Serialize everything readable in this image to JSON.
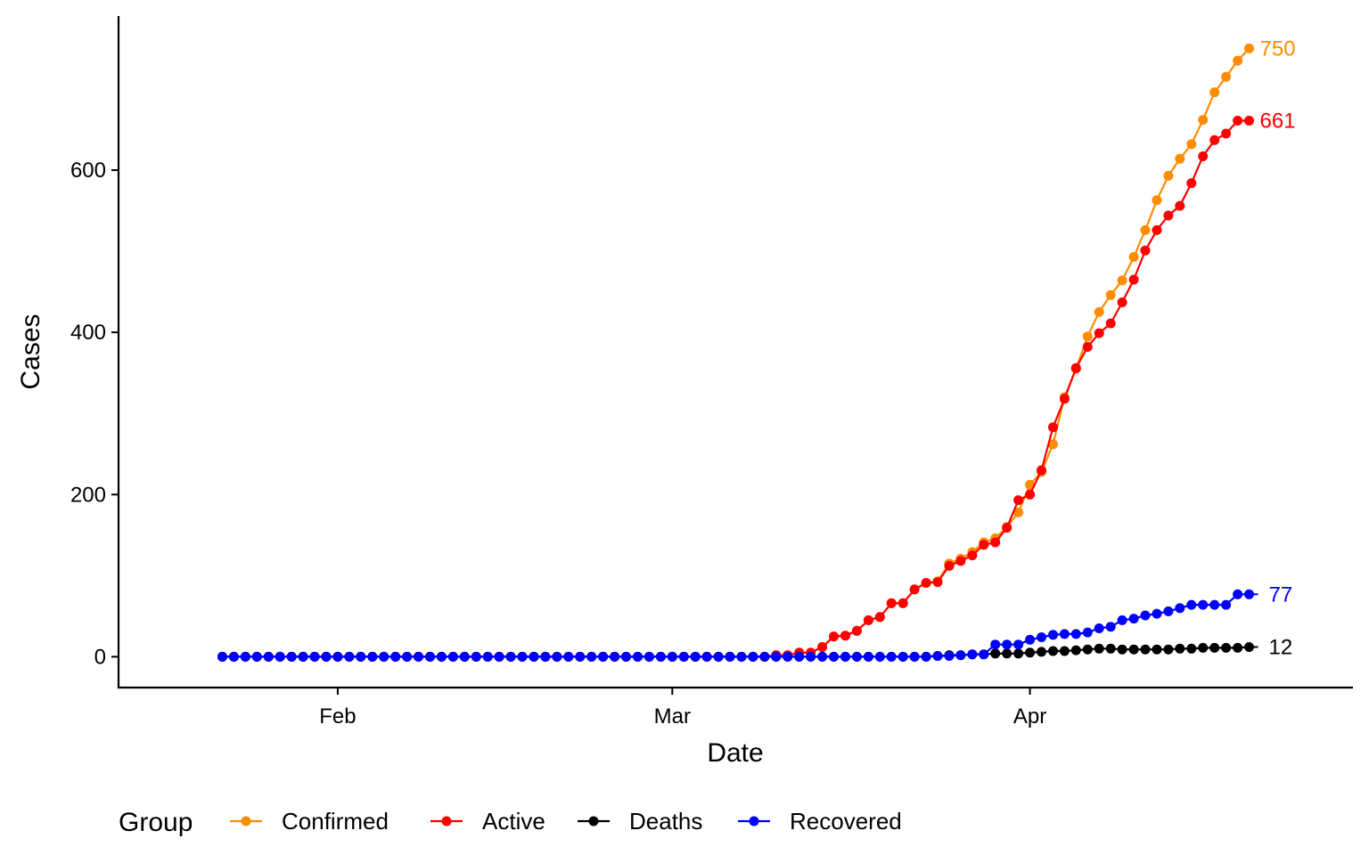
{
  "chart_data": {
    "type": "line",
    "xlabel": "Date",
    "ylabel": "Cases",
    "x_start": "2020-01-22",
    "x_end": "2020-04-17",
    "xlim": [
      "2020-01-13",
      "2020-04-29"
    ],
    "ylim": [
      -38,
      790
    ],
    "x_ticks": [
      {
        "date": "2020-02-01",
        "label": "Feb"
      },
      {
        "date": "2020-03-01",
        "label": "Mar"
      },
      {
        "date": "2020-04-01",
        "label": "Apr"
      }
    ],
    "y_ticks": [
      0,
      200,
      400,
      600
    ],
    "grid": false,
    "legend": {
      "title": "Group",
      "position": "bottom-left"
    },
    "series": [
      {
        "name": "Confirmed",
        "color": "#FF8C00",
        "end_label": "750",
        "values": [
          0,
          0,
          0,
          0,
          0,
          0,
          0,
          0,
          0,
          0,
          0,
          0,
          0,
          0,
          0,
          0,
          0,
          0,
          0,
          0,
          0,
          0,
          0,
          0,
          0,
          0,
          0,
          0,
          0,
          0,
          0,
          0,
          0,
          0,
          0,
          0,
          0,
          0,
          0,
          0,
          0,
          0,
          0,
          0,
          0,
          0,
          0,
          0,
          2,
          2,
          5,
          5,
          12,
          25,
          26,
          32,
          45,
          49,
          66,
          66,
          83,
          91,
          93,
          115,
          121,
          129,
          141,
          146,
          160,
          178,
          212,
          228,
          262,
          320,
          355,
          395,
          425,
          446,
          464,
          493,
          526,
          563,
          593,
          614,
          632,
          662,
          696,
          715,
          735,
          750
        ]
      },
      {
        "name": "Active",
        "color": "#FF0000",
        "end_label": "661",
        "values": [
          0,
          0,
          0,
          0,
          0,
          0,
          0,
          0,
          0,
          0,
          0,
          0,
          0,
          0,
          0,
          0,
          0,
          0,
          0,
          0,
          0,
          0,
          0,
          0,
          0,
          0,
          0,
          0,
          0,
          0,
          0,
          0,
          0,
          0,
          0,
          0,
          0,
          0,
          0,
          0,
          0,
          0,
          0,
          0,
          0,
          0,
          0,
          0,
          2,
          2,
          5,
          5,
          12,
          25,
          26,
          32,
          45,
          49,
          66,
          66,
          83,
          91,
          92,
          112,
          118,
          125,
          138,
          141,
          159,
          193,
          200,
          230,
          283,
          318,
          356,
          382,
          399,
          411,
          437,
          465,
          501,
          526,
          544,
          556,
          584,
          617,
          637,
          645,
          661,
          661
        ]
      },
      {
        "name": "Deaths",
        "color": "#000000",
        "end_label": "12",
        "values": [
          0,
          0,
          0,
          0,
          0,
          0,
          0,
          0,
          0,
          0,
          0,
          0,
          0,
          0,
          0,
          0,
          0,
          0,
          0,
          0,
          0,
          0,
          0,
          0,
          0,
          0,
          0,
          0,
          0,
          0,
          0,
          0,
          0,
          0,
          0,
          0,
          0,
          0,
          0,
          0,
          0,
          0,
          0,
          0,
          0,
          0,
          0,
          0,
          0,
          0,
          0,
          0,
          0,
          0,
          0,
          0,
          0,
          0,
          0,
          0,
          0,
          0,
          1,
          2,
          2,
          3,
          3,
          4,
          4,
          4,
          5,
          6,
          7,
          7,
          8,
          9,
          10,
          10,
          9,
          9,
          9,
          9,
          9,
          10,
          10,
          11,
          11,
          11,
          11,
          12
        ]
      },
      {
        "name": "Recovered",
        "color": "#0000FF",
        "end_label": "77",
        "values": [
          0,
          0,
          0,
          0,
          0,
          0,
          0,
          0,
          0,
          0,
          0,
          0,
          0,
          0,
          0,
          0,
          0,
          0,
          0,
          0,
          0,
          0,
          0,
          0,
          0,
          0,
          0,
          0,
          0,
          0,
          0,
          0,
          0,
          0,
          0,
          0,
          0,
          0,
          0,
          0,
          0,
          0,
          0,
          0,
          0,
          0,
          0,
          0,
          0,
          0,
          0,
          0,
          0,
          0,
          0,
          0,
          0,
          0,
          0,
          0,
          0,
          0,
          1,
          1,
          2,
          3,
          3,
          15,
          15,
          15,
          21,
          24,
          27,
          28,
          28,
          30,
          35,
          37,
          45,
          47,
          51,
          53,
          56,
          60,
          64,
          64,
          64,
          64,
          77,
          77
        ]
      }
    ]
  }
}
